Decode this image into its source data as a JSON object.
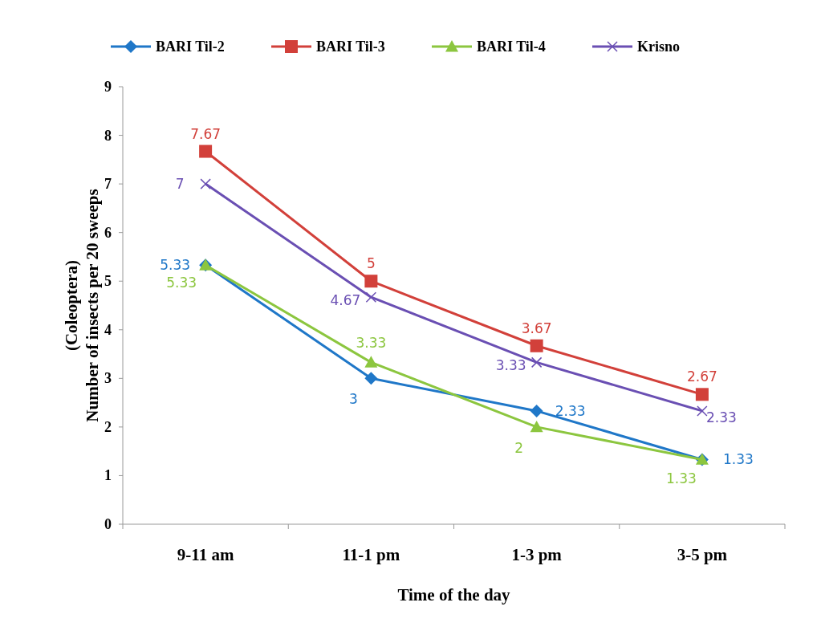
{
  "chart_data": {
    "type": "line",
    "xlabel": "Time of the day",
    "ylabel": "(Coleoptera)\nNumber of insects per 20 sweeps",
    "categories": [
      "9-11 am",
      "11-1 pm",
      "1-3 pm",
      "3-5 pm"
    ],
    "series": [
      {
        "name": "BARI Til-2",
        "color": "#1f77c8",
        "marker": "diamond",
        "values": [
          5.33,
          3,
          2.33,
          1.33
        ]
      },
      {
        "name": "BARI Til-3",
        "color": "#d2403a",
        "marker": "square",
        "values": [
          7.67,
          5,
          3.67,
          2.67
        ]
      },
      {
        "name": "BARI Til-4",
        "color": "#8cc63f",
        "marker": "triangle",
        "values": [
          5.33,
          3.33,
          2,
          1.33
        ]
      },
      {
        "name": "Krisno",
        "color": "#6a4fb3",
        "marker": "cross",
        "values": [
          7,
          4.67,
          3.33,
          2.33
        ]
      }
    ],
    "ylim": [
      0,
      9
    ],
    "yticks": [
      0,
      1,
      2,
      3,
      4,
      5,
      6,
      7,
      8,
      9
    ],
    "grid": false,
    "legend": "top",
    "data_labels": true,
    "line_style": "solid"
  }
}
